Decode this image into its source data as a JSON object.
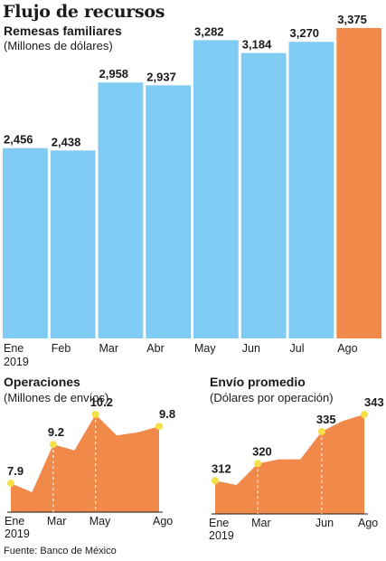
{
  "title": "Flujo de recursos",
  "source": "Fuente: Banco de México",
  "colors": {
    "blue": "#7fcbf3",
    "orange": "#f0894a",
    "highlight": "#f5e04a",
    "text": "#1a1a1a"
  },
  "chart_data": [
    {
      "type": "bar",
      "title": "Remesas familiares",
      "subtitle": "(Millones de dólares)",
      "categories": [
        "Ene",
        "Feb",
        "Mar",
        "Abr",
        "May",
        "Jun",
        "Jul",
        "Ago"
      ],
      "category_sublabel": "2019",
      "values": [
        2456,
        2438,
        2958,
        2937,
        3282,
        3184,
        3270,
        3375
      ],
      "value_labels": [
        "2,456",
        "2,438",
        "2,958",
        "2,937",
        "3,282",
        "3,184",
        "3,270",
        "3,375"
      ],
      "highlight_index": 7
    },
    {
      "type": "area",
      "title": "Operaciones",
      "subtitle": "(Millones de envíos)",
      "x": [
        "Ene",
        "Feb",
        "Mar",
        "Abr",
        "May",
        "Jun",
        "Jul",
        "Ago"
      ],
      "y": [
        7.9,
        7.6,
        9.2,
        9.0,
        10.2,
        9.5,
        9.6,
        9.8
      ],
      "ticks": [
        "Ene",
        "Mar",
        "May",
        "Ago"
      ],
      "tick_sublabel": "2019",
      "labeled_points": [
        {
          "x": "Ene",
          "label": "7.9"
        },
        {
          "x": "Mar",
          "label": "9.2"
        },
        {
          "x": "May",
          "label": "10.2"
        },
        {
          "x": "Ago",
          "label": "9.8"
        }
      ]
    },
    {
      "type": "area",
      "title": "Envío promedio",
      "subtitle": "(Dólares por operación)",
      "x": [
        "Ene",
        "Feb",
        "Mar",
        "Abr",
        "May",
        "Jun",
        "Jul",
        "Ago"
      ],
      "y": [
        312,
        310,
        320,
        322,
        322,
        335,
        340,
        343
      ],
      "ticks": [
        "Ene",
        "Mar",
        "Jun",
        "Ago"
      ],
      "tick_sublabel": "2019",
      "labeled_points": [
        {
          "x": "Ene",
          "label": "312"
        },
        {
          "x": "Mar",
          "label": "320"
        },
        {
          "x": "Jun",
          "label": "335"
        },
        {
          "x": "Ago",
          "label": "343"
        }
      ]
    }
  ]
}
